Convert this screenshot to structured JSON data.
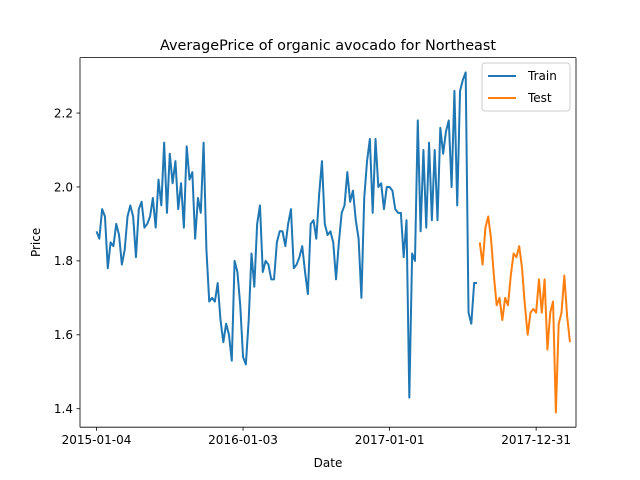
{
  "chart_data": {
    "type": "line",
    "title": "AveragePrice of organic avocado for Northeast",
    "xlabel": "Date",
    "ylabel": "Price",
    "xlim": [
      "2014-11-24",
      "2018-04-09"
    ],
    "ylim": [
      1.35,
      2.35
    ],
    "x_ticks": [
      "2015-01-04",
      "2016-01-03",
      "2017-01-01",
      "2017-12-31"
    ],
    "y_ticks": [
      1.4,
      1.6,
      1.8,
      2.0,
      2.2
    ],
    "y_tick_labels": [
      "1.4",
      "1.6",
      "1.8",
      "2.0",
      "2.2"
    ],
    "grid": false,
    "legend_position": "top-right",
    "series": [
      {
        "name": "Train",
        "color": "#1f77b4",
        "points": [
          [
            "2015-01-04",
            1.88
          ],
          [
            "2015-01-11",
            1.86
          ],
          [
            "2015-01-18",
            1.94
          ],
          [
            "2015-01-25",
            1.92
          ],
          [
            "2015-02-01",
            1.78
          ],
          [
            "2015-02-08",
            1.85
          ],
          [
            "2015-02-15",
            1.84
          ],
          [
            "2015-02-22",
            1.9
          ],
          [
            "2015-03-01",
            1.87
          ],
          [
            "2015-03-08",
            1.79
          ],
          [
            "2015-03-15",
            1.83
          ],
          [
            "2015-03-22",
            1.92
          ],
          [
            "2015-03-29",
            1.95
          ],
          [
            "2015-04-05",
            1.92
          ],
          [
            "2015-04-12",
            1.81
          ],
          [
            "2015-04-19",
            1.94
          ],
          [
            "2015-04-26",
            1.96
          ],
          [
            "2015-05-03",
            1.89
          ],
          [
            "2015-05-10",
            1.9
          ],
          [
            "2015-05-17",
            1.92
          ],
          [
            "2015-05-24",
            1.97
          ],
          [
            "2015-05-31",
            1.89
          ],
          [
            "2015-06-07",
            2.02
          ],
          [
            "2015-06-14",
            1.95
          ],
          [
            "2015-06-21",
            2.12
          ],
          [
            "2015-06-28",
            1.93
          ],
          [
            "2015-07-05",
            2.09
          ],
          [
            "2015-07-12",
            2.01
          ],
          [
            "2015-07-19",
            2.07
          ],
          [
            "2015-07-26",
            1.94
          ],
          [
            "2015-08-02",
            2.01
          ],
          [
            "2015-08-09",
            1.89
          ],
          [
            "2015-08-16",
            2.11
          ],
          [
            "2015-08-23",
            2.02
          ],
          [
            "2015-08-30",
            2.04
          ],
          [
            "2015-09-06",
            1.86
          ],
          [
            "2015-09-13",
            1.97
          ],
          [
            "2015-09-20",
            1.93
          ],
          [
            "2015-09-27",
            2.12
          ],
          [
            "2015-10-04",
            1.83
          ],
          [
            "2015-10-11",
            1.69
          ],
          [
            "2015-10-18",
            1.7
          ],
          [
            "2015-10-25",
            1.69
          ],
          [
            "2015-11-01",
            1.74
          ],
          [
            "2015-11-08",
            1.64
          ],
          [
            "2015-11-15",
            1.58
          ],
          [
            "2015-11-22",
            1.63
          ],
          [
            "2015-11-29",
            1.6
          ],
          [
            "2015-12-06",
            1.53
          ],
          [
            "2015-12-13",
            1.8
          ],
          [
            "2015-12-20",
            1.77
          ],
          [
            "2015-12-27",
            1.68
          ],
          [
            "2016-01-03",
            1.54
          ],
          [
            "2016-01-10",
            1.52
          ],
          [
            "2016-01-17",
            1.64
          ],
          [
            "2016-01-24",
            1.82
          ],
          [
            "2016-01-31",
            1.73
          ],
          [
            "2016-02-07",
            1.9
          ],
          [
            "2016-02-14",
            1.95
          ],
          [
            "2016-02-21",
            1.77
          ],
          [
            "2016-02-28",
            1.8
          ],
          [
            "2016-03-06",
            1.79
          ],
          [
            "2016-03-13",
            1.75
          ],
          [
            "2016-03-20",
            1.75
          ],
          [
            "2016-03-27",
            1.85
          ],
          [
            "2016-04-03",
            1.88
          ],
          [
            "2016-04-10",
            1.88
          ],
          [
            "2016-04-17",
            1.84
          ],
          [
            "2016-04-24",
            1.9
          ],
          [
            "2016-05-01",
            1.94
          ],
          [
            "2016-05-08",
            1.78
          ],
          [
            "2016-05-15",
            1.79
          ],
          [
            "2016-05-22",
            1.81
          ],
          [
            "2016-05-29",
            1.84
          ],
          [
            "2016-06-05",
            1.77
          ],
          [
            "2016-06-12",
            1.71
          ],
          [
            "2016-06-19",
            1.9
          ],
          [
            "2016-06-26",
            1.91
          ],
          [
            "2016-07-03",
            1.86
          ],
          [
            "2016-07-10",
            1.98
          ],
          [
            "2016-07-17",
            2.07
          ],
          [
            "2016-07-24",
            1.9
          ],
          [
            "2016-07-31",
            1.87
          ],
          [
            "2016-08-07",
            1.88
          ],
          [
            "2016-08-14",
            1.85
          ],
          [
            "2016-08-21",
            1.75
          ],
          [
            "2016-08-28",
            1.85
          ],
          [
            "2016-09-04",
            1.93
          ],
          [
            "2016-09-11",
            1.95
          ],
          [
            "2016-09-18",
            2.04
          ],
          [
            "2016-09-25",
            1.96
          ],
          [
            "2016-10-02",
            1.99
          ],
          [
            "2016-10-09",
            1.91
          ],
          [
            "2016-10-16",
            1.86
          ],
          [
            "2016-10-23",
            1.7
          ],
          [
            "2016-10-30",
            1.97
          ],
          [
            "2016-11-06",
            2.07
          ],
          [
            "2016-11-13",
            2.13
          ],
          [
            "2016-11-20",
            1.93
          ],
          [
            "2016-11-27",
            2.13
          ],
          [
            "2016-12-04",
            2.0
          ],
          [
            "2016-12-11",
            2.01
          ],
          [
            "2016-12-18",
            1.94
          ],
          [
            "2016-12-25",
            2.0
          ],
          [
            "2017-01-01",
            2.0
          ],
          [
            "2017-01-08",
            1.99
          ],
          [
            "2017-01-15",
            1.94
          ],
          [
            "2017-01-22",
            1.93
          ],
          [
            "2017-01-29",
            1.93
          ],
          [
            "2017-02-05",
            1.81
          ],
          [
            "2017-02-12",
            1.91
          ],
          [
            "2017-02-19",
            1.43
          ],
          [
            "2017-02-26",
            1.82
          ],
          [
            "2017-03-05",
            1.8
          ],
          [
            "2017-03-12",
            2.18
          ],
          [
            "2017-03-19",
            1.88
          ],
          [
            "2017-03-26",
            2.1
          ],
          [
            "2017-04-02",
            1.89
          ],
          [
            "2017-04-09",
            2.12
          ],
          [
            "2017-04-16",
            1.91
          ],
          [
            "2017-04-23",
            2.1
          ],
          [
            "2017-04-30",
            1.91
          ],
          [
            "2017-05-07",
            2.16
          ],
          [
            "2017-05-14",
            2.09
          ],
          [
            "2017-05-21",
            2.15
          ],
          [
            "2017-05-28",
            2.18
          ],
          [
            "2017-06-04",
            2.0
          ],
          [
            "2017-06-11",
            2.26
          ],
          [
            "2017-06-18",
            1.95
          ],
          [
            "2017-06-25",
            2.26
          ],
          [
            "2017-07-02",
            2.29
          ],
          [
            "2017-07-09",
            2.31
          ],
          [
            "2017-07-16",
            1.66
          ],
          [
            "2017-07-23",
            1.63
          ],
          [
            "2017-07-30",
            1.74
          ],
          [
            "2017-08-06",
            1.74
          ]
        ]
      },
      {
        "name": "Test",
        "color": "#ff7f0e",
        "points": [
          [
            "2017-08-13",
            1.85
          ],
          [
            "2017-08-20",
            1.79
          ],
          [
            "2017-08-27",
            1.89
          ],
          [
            "2017-09-03",
            1.92
          ],
          [
            "2017-09-10",
            1.86
          ],
          [
            "2017-09-17",
            1.76
          ],
          [
            "2017-09-24",
            1.68
          ],
          [
            "2017-10-01",
            1.7
          ],
          [
            "2017-10-08",
            1.64
          ],
          [
            "2017-10-15",
            1.7
          ],
          [
            "2017-10-22",
            1.68
          ],
          [
            "2017-10-29",
            1.76
          ],
          [
            "2017-11-05",
            1.82
          ],
          [
            "2017-11-12",
            1.81
          ],
          [
            "2017-11-19",
            1.84
          ],
          [
            "2017-11-26",
            1.78
          ],
          [
            "2017-12-03",
            1.68
          ],
          [
            "2017-12-10",
            1.6
          ],
          [
            "2017-12-17",
            1.66
          ],
          [
            "2017-12-24",
            1.67
          ],
          [
            "2017-12-31",
            1.66
          ],
          [
            "2018-01-07",
            1.75
          ],
          [
            "2018-01-14",
            1.66
          ],
          [
            "2018-01-21",
            1.75
          ],
          [
            "2018-01-28",
            1.56
          ],
          [
            "2018-02-04",
            1.66
          ],
          [
            "2018-02-11",
            1.69
          ],
          [
            "2018-02-18",
            1.39
          ],
          [
            "2018-02-25",
            1.63
          ],
          [
            "2018-03-04",
            1.66
          ],
          [
            "2018-03-11",
            1.76
          ],
          [
            "2018-03-18",
            1.65
          ],
          [
            "2018-03-25",
            1.58
          ]
        ]
      }
    ]
  }
}
